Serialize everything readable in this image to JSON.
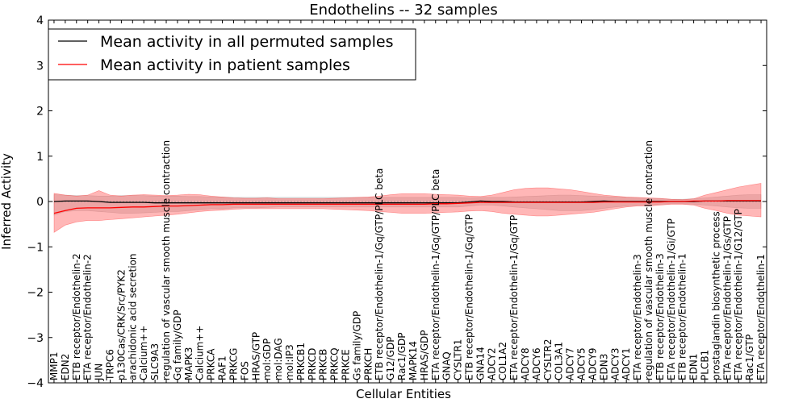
{
  "chart_data": {
    "type": "line",
    "title": "Endothelins -- 32 samples",
    "xlabel": "Cellular Entities",
    "ylabel": "Inferred Activity",
    "ylim": [
      -4,
      4
    ],
    "yticks": [
      -4,
      -3,
      -2,
      -1,
      0,
      1,
      2,
      3,
      4
    ],
    "ytick_labels": [
      "−4",
      "−3",
      "−2",
      "−1",
      "0",
      "1",
      "2",
      "3",
      "4"
    ],
    "legend": {
      "placement": "top-left",
      "entries": [
        {
          "label": "Mean activity in all permuted samples",
          "color": "#000000"
        },
        {
          "label": "Mean activity in patient samples",
          "color": "#ff0000"
        }
      ]
    },
    "categories": [
      "MMP1",
      "EDN2",
      "ETB receptor/Endothelin-2",
      "ETA receptor/Endothelin-2",
      "JUN",
      "TRPC6",
      "p130Cas/CRK/Src/PYK2",
      "arachidonic acid secretion",
      "Calcium++",
      "SLC9A3",
      "regulation of vascular smooth muscle contraction",
      "Gq family/GDP",
      "MAPK3",
      "Calcium++",
      "PRKCA",
      "RAF1",
      "PRKCG",
      "FOS",
      "HRAS/GTP",
      "mol:GDP",
      "mol:DAG",
      "mol:IP3",
      "PRKCB1",
      "PRKCD",
      "PRKCB",
      "PRKCQ",
      "PRKCE",
      "Gs family/GDP",
      "PRKCH",
      "ETB receptor/Endothelin-1/Gq/GTP/PLC beta",
      "G12/GDP",
      "Rac1/GDP",
      "MAPK14",
      "HRAS/GDP",
      "ETA receptor/Endothelin-1/Gq/GTP/PLC beta",
      "GNAQ",
      "CYSLTR1",
      "ETB receptor/Endothelin-1/Gq/GTP",
      "GNA14",
      "ADCY2",
      "COL1A2",
      "ETA receptor/Endothelin-1/Gq/GTP",
      "ADCY8",
      "ADCY6",
      "CYSLTR2",
      "COL3A1",
      "ADCY7",
      "ADCY5",
      "ADCY9",
      "EDN3",
      "ADCY3",
      "ADCY1",
      "ETA receptor/Endothelin-3",
      "regulation of vascular smooth muscle contraction",
      "ETB receptor/Endothelin-3",
      "ETA receptor/Endothelin-1/Gi/GTP",
      "ETB receptor/Endothelin-1",
      "EDN1",
      "PLCB1",
      "prostaglandin biosynthetic process",
      "ETA receptor/Endothelin-1/Gs/GTP",
      "ETA receptor/Endothelin-1/G12/GTP",
      "Rac1/GTP",
      "ETA receptor/Endothelin-1"
    ],
    "series": [
      {
        "name": "Mean activity in all permuted samples",
        "color": "#000000",
        "values": [
          0.0,
          0.01,
          0.01,
          0.01,
          0.0,
          -0.02,
          -0.02,
          -0.02,
          -0.02,
          -0.03,
          -0.03,
          -0.03,
          -0.03,
          -0.03,
          -0.03,
          -0.03,
          -0.03,
          -0.03,
          -0.03,
          -0.03,
          -0.03,
          -0.03,
          -0.03,
          -0.03,
          -0.03,
          -0.03,
          -0.03,
          -0.03,
          -0.03,
          -0.03,
          -0.03,
          -0.03,
          -0.03,
          -0.03,
          -0.03,
          -0.03,
          -0.03,
          -0.01,
          0.01,
          0.0,
          0.0,
          -0.01,
          -0.01,
          -0.01,
          -0.01,
          -0.01,
          -0.01,
          -0.01,
          0.0,
          0.01,
          0.0,
          0.0,
          0.0,
          0.0,
          0.0,
          0.0,
          0.0,
          0.0,
          0.01,
          0.01,
          0.01,
          0.01,
          0.01,
          0.01
        ],
        "band_low": [
          -0.3,
          -0.22,
          -0.2,
          -0.2,
          -0.22,
          -0.24,
          -0.26,
          -0.26,
          -0.25,
          -0.24,
          -0.22,
          -0.22,
          -0.2,
          -0.18,
          -0.16,
          -0.16,
          -0.14,
          -0.14,
          -0.14,
          -0.13,
          -0.12,
          -0.12,
          -0.12,
          -0.12,
          -0.12,
          -0.12,
          -0.12,
          -0.12,
          -0.12,
          -0.12,
          -0.12,
          -0.12,
          -0.12,
          -0.12,
          -0.12,
          -0.12,
          -0.12,
          -0.1,
          -0.08,
          -0.08,
          -0.1,
          -0.12,
          -0.14,
          -0.16,
          -0.18,
          -0.2,
          -0.2,
          -0.2,
          -0.18,
          -0.15,
          -0.12,
          -0.1,
          -0.08,
          -0.08,
          -0.06,
          -0.05,
          -0.05,
          -0.06,
          -0.08,
          -0.1,
          -0.12,
          -0.14,
          -0.15,
          -0.15
        ],
        "band_high": [
          0.15,
          0.14,
          0.13,
          0.13,
          0.12,
          0.12,
          0.13,
          0.13,
          0.13,
          0.12,
          0.12,
          0.12,
          0.11,
          0.11,
          0.1,
          0.1,
          0.09,
          0.09,
          0.09,
          0.09,
          0.09,
          0.09,
          0.09,
          0.09,
          0.09,
          0.09,
          0.09,
          0.09,
          0.09,
          0.09,
          0.09,
          0.09,
          0.09,
          0.09,
          0.09,
          0.09,
          0.09,
          0.08,
          0.09,
          0.09,
          0.09,
          0.1,
          0.11,
          0.12,
          0.13,
          0.14,
          0.14,
          0.13,
          0.12,
          0.11,
          0.1,
          0.09,
          0.08,
          0.07,
          0.06,
          0.05,
          0.05,
          0.06,
          0.08,
          0.1,
          0.12,
          0.14,
          0.15,
          0.15
        ]
      },
      {
        "name": "Mean activity in patient samples",
        "color": "#ff0000",
        "values": [
          -0.26,
          -0.2,
          -0.15,
          -0.14,
          -0.14,
          -0.14,
          -0.13,
          -0.12,
          -0.12,
          -0.11,
          -0.1,
          -0.1,
          -0.09,
          -0.08,
          -0.07,
          -0.07,
          -0.06,
          -0.06,
          -0.06,
          -0.06,
          -0.06,
          -0.06,
          -0.06,
          -0.06,
          -0.06,
          -0.06,
          -0.06,
          -0.06,
          -0.06,
          -0.06,
          -0.06,
          -0.06,
          -0.06,
          -0.06,
          -0.05,
          -0.05,
          -0.04,
          -0.03,
          -0.02,
          -0.02,
          -0.02,
          -0.02,
          -0.02,
          -0.02,
          -0.02,
          -0.02,
          -0.02,
          -0.02,
          -0.02,
          -0.01,
          -0.01,
          -0.01,
          -0.01,
          -0.01,
          -0.01,
          0.0,
          0.0,
          0.01,
          0.01,
          0.01,
          0.02,
          0.02,
          0.02,
          0.02
        ],
        "band_low": [
          -0.68,
          -0.52,
          -0.45,
          -0.42,
          -0.42,
          -0.4,
          -0.38,
          -0.36,
          -0.34,
          -0.32,
          -0.3,
          -0.28,
          -0.25,
          -0.22,
          -0.2,
          -0.19,
          -0.17,
          -0.16,
          -0.16,
          -0.16,
          -0.16,
          -0.16,
          -0.16,
          -0.16,
          -0.16,
          -0.17,
          -0.18,
          -0.19,
          -0.2,
          -0.22,
          -0.24,
          -0.26,
          -0.26,
          -0.26,
          -0.25,
          -0.24,
          -0.23,
          -0.21,
          -0.2,
          -0.22,
          -0.26,
          -0.28,
          -0.3,
          -0.32,
          -0.32,
          -0.3,
          -0.28,
          -0.26,
          -0.24,
          -0.2,
          -0.16,
          -0.12,
          -0.1,
          -0.1,
          -0.08,
          -0.06,
          -0.06,
          -0.08,
          -0.15,
          -0.2,
          -0.26,
          -0.3,
          -0.32,
          -0.34
        ],
        "band_high": [
          0.18,
          0.14,
          0.12,
          0.14,
          0.24,
          0.14,
          0.12,
          0.14,
          0.15,
          0.14,
          0.13,
          0.14,
          0.16,
          0.15,
          0.12,
          0.1,
          0.08,
          0.07,
          0.07,
          0.08,
          0.06,
          0.06,
          0.06,
          0.06,
          0.06,
          0.07,
          0.08,
          0.09,
          0.1,
          0.12,
          0.15,
          0.17,
          0.17,
          0.17,
          0.16,
          0.15,
          0.14,
          0.12,
          0.11,
          0.14,
          0.2,
          0.26,
          0.29,
          0.3,
          0.3,
          0.28,
          0.26,
          0.22,
          0.18,
          0.14,
          0.12,
          0.1,
          0.09,
          0.08,
          0.07,
          0.05,
          0.04,
          0.06,
          0.14,
          0.2,
          0.26,
          0.32,
          0.36,
          0.4
        ]
      }
    ]
  }
}
